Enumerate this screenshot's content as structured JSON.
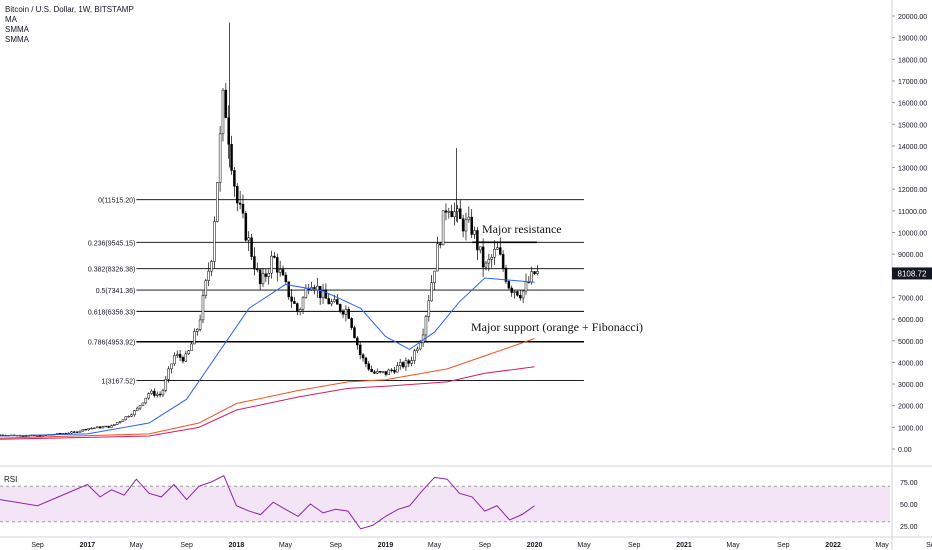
{
  "header": {
    "symbol_line": "Bitcoin / U.S. Dollar, 1W, BITSTAMP",
    "indicators": [
      "MA",
      "SMMA",
      "SMMA"
    ]
  },
  "rsi_label": "RSI",
  "last_price": "8108.72",
  "annotations": {
    "resistance": "Major resistance",
    "support": "Major support (orange + Fibonacci)"
  },
  "colors": {
    "up": "#000000",
    "down": "#000000",
    "ma": "#2962ff",
    "smma1": "#f4511e",
    "smma2": "#d81b60",
    "rsi": "#8e24aa",
    "rsi_band": "#f3e5f5",
    "fib": "#000000",
    "price_tag": "#131722"
  },
  "chart_data": [
    {
      "type": "candlestick",
      "interval": "1W",
      "y_axis": {
        "range": [
          -500,
          20500
        ],
        "ticks": [
          0,
          1000,
          2000,
          3000,
          4000,
          5000,
          6000,
          7000,
          8000,
          9000,
          10000,
          11000,
          12000,
          13000,
          14000,
          15000,
          16000,
          17000,
          18000,
          19000,
          20000
        ],
        "tick_labels": [
          "0.00",
          "1000.00",
          "2000.00",
          "3000.00",
          "4000.00",
          "5000.00",
          "6000.00",
          "7000.00",
          "8000.00",
          "9000.00",
          "10000.00",
          "11000.00",
          "12000.00",
          "13000.00",
          "14000.00",
          "15000.00",
          "16000.00",
          "17000.00",
          "18000.00",
          "19000.00",
          "20000.00"
        ]
      },
      "x_axis": {
        "labels": [
          {
            "t": "2016-09",
            "label": "Sep"
          },
          {
            "t": "2017-01",
            "label": "2017"
          },
          {
            "t": "2017-05",
            "label": "May"
          },
          {
            "t": "2017-09",
            "label": "Sep"
          },
          {
            "t": "2018-01",
            "label": "2018"
          },
          {
            "t": "2018-05",
            "label": "May"
          },
          {
            "t": "2018-09",
            "label": "Sep"
          },
          {
            "t": "2019-01",
            "label": "2019"
          },
          {
            "t": "2019-05",
            "label": "May"
          },
          {
            "t": "2019-09",
            "label": "Sep"
          },
          {
            "t": "2020-01",
            "label": "2020"
          },
          {
            "t": "2020-05",
            "label": "May"
          },
          {
            "t": "2020-09",
            "label": "Sep"
          },
          {
            "t": "2021-01",
            "label": "2021"
          },
          {
            "t": "2021-05",
            "label": "May"
          },
          {
            "t": "2021-09",
            "label": "Sep"
          },
          {
            "t": "2022-01",
            "label": "2022"
          },
          {
            "t": "2022-05",
            "label": "May"
          },
          {
            "t": "2022-09",
            "label": "Sep"
          }
        ]
      },
      "price_path": [
        [
          "2016-06",
          650
        ],
        [
          "2016-09",
          610
        ],
        [
          "2016-12",
          780
        ],
        [
          "2017-01",
          950
        ],
        [
          "2017-03",
          1050
        ],
        [
          "2017-05",
          1800
        ],
        [
          "2017-06",
          2600
        ],
        [
          "2017-07",
          2500
        ],
        [
          "2017-08",
          4300
        ],
        [
          "2017-09",
          4200
        ],
        [
          "2017-10",
          5800
        ],
        [
          "2017-11",
          9000
        ],
        [
          "2017-12",
          16500
        ],
        [
          "2018-01",
          11500
        ],
        [
          "2018-02",
          9500
        ],
        [
          "2018-03",
          7500
        ],
        [
          "2018-04",
          8900
        ],
        [
          "2018-05",
          7500
        ],
        [
          "2018-06",
          6300
        ],
        [
          "2018-07",
          7900
        ],
        [
          "2018-08",
          7000
        ],
        [
          "2018-09",
          6600
        ],
        [
          "2018-10",
          6400
        ],
        [
          "2018-11",
          4300
        ],
        [
          "2018-12",
          3500
        ],
        [
          "2019-01",
          3500
        ],
        [
          "2019-02",
          3800
        ],
        [
          "2019-03",
          4000
        ],
        [
          "2019-04",
          5300
        ],
        [
          "2019-05",
          8500
        ],
        [
          "2019-06",
          11500
        ],
        [
          "2019-07",
          10500
        ],
        [
          "2019-08",
          10200
        ],
        [
          "2019-09",
          8300
        ],
        [
          "2019-10",
          9200
        ],
        [
          "2019-11",
          7500
        ],
        [
          "2019-12",
          7200
        ],
        [
          "2020-01",
          8108.72
        ]
      ],
      "series": [
        {
          "name": "MA",
          "path": [
            [
              "2016-06",
              600
            ],
            [
              "2017-01",
              700
            ],
            [
              "2017-06",
              1200
            ],
            [
              "2017-09",
              2300
            ],
            [
              "2017-12",
              4800
            ],
            [
              "2018-02",
              6500
            ],
            [
              "2018-05",
              7600
            ],
            [
              "2018-08",
              7300
            ],
            [
              "2018-11",
              6500
            ],
            [
              "2019-01",
              5200
            ],
            [
              "2019-03",
              4600
            ],
            [
              "2019-05",
              5400
            ],
            [
              "2019-07",
              6800
            ],
            [
              "2019-09",
              7900
            ],
            [
              "2019-11",
              7800
            ],
            [
              "2020-01",
              7700
            ]
          ]
        },
        {
          "name": "SMMA",
          "path": [
            [
              "2016-06",
              500
            ],
            [
              "2017-06",
              700
            ],
            [
              "2017-10",
              1200
            ],
            [
              "2018-01",
              2100
            ],
            [
              "2018-06",
              2700
            ],
            [
              "2018-10",
              3100
            ],
            [
              "2019-01",
              3200
            ],
            [
              "2019-06",
              3700
            ],
            [
              "2019-09",
              4300
            ],
            [
              "2020-01",
              5100
            ]
          ]
        },
        {
          "name": "SMMA",
          "path": [
            [
              "2016-06",
              450
            ],
            [
              "2017-06",
              600
            ],
            [
              "2017-10",
              1000
            ],
            [
              "2018-01",
              1800
            ],
            [
              "2018-06",
              2400
            ],
            [
              "2018-10",
              2800
            ],
            [
              "2019-01",
              2900
            ],
            [
              "2019-06",
              3100
            ],
            [
              "2019-09",
              3500
            ],
            [
              "2020-01",
              3800
            ]
          ]
        }
      ],
      "fibonacci": [
        {
          "level": "0",
          "price": 11515.2,
          "label": "0(11515.20)"
        },
        {
          "level": "0.236",
          "price": 9545.15,
          "label": "0.236(9545.15)"
        },
        {
          "level": "0.382",
          "price": 8326.38,
          "label": "0.382(8326.38)"
        },
        {
          "level": "0.5",
          "price": 7341.36,
          "label": "0.5(7341.36)"
        },
        {
          "level": "0.618",
          "price": 6356.33,
          "label": "0.618(6356.33)"
        },
        {
          "level": "0.786",
          "price": 4953.92,
          "label": "0.786(4953.92)"
        },
        {
          "level": "1",
          "price": 3167.52,
          "label": "1(3167.52)"
        }
      ],
      "last_price": 8108.72
    },
    {
      "type": "line",
      "name": "RSI",
      "y_axis": {
        "ticks": [
          25,
          50,
          75
        ],
        "tick_labels": [
          "25.00",
          "50.00",
          "75.00"
        ],
        "band": [
          30,
          70
        ]
      },
      "path": [
        [
          "2016-06",
          55
        ],
        [
          "2016-09",
          48
        ],
        [
          "2016-11",
          60
        ],
        [
          "2017-01",
          72
        ],
        [
          "2017-02",
          58
        ],
        [
          "2017-03",
          66
        ],
        [
          "2017-04",
          60
        ],
        [
          "2017-05",
          78
        ],
        [
          "2017-06",
          62
        ],
        [
          "2017-07",
          58
        ],
        [
          "2017-08",
          72
        ],
        [
          "2017-09",
          55
        ],
        [
          "2017-10",
          70
        ],
        [
          "2017-11",
          75
        ],
        [
          "2017-12",
          82
        ],
        [
          "2018-01",
          48
        ],
        [
          "2018-02",
          42
        ],
        [
          "2018-03",
          38
        ],
        [
          "2018-04",
          52
        ],
        [
          "2018-05",
          44
        ],
        [
          "2018-06",
          36
        ],
        [
          "2018-07",
          50
        ],
        [
          "2018-08",
          40
        ],
        [
          "2018-09",
          44
        ],
        [
          "2018-10",
          42
        ],
        [
          "2018-11",
          22
        ],
        [
          "2018-12",
          26
        ],
        [
          "2019-01",
          36
        ],
        [
          "2019-02",
          44
        ],
        [
          "2019-03",
          48
        ],
        [
          "2019-04",
          65
        ],
        [
          "2019-05",
          80
        ],
        [
          "2019-06",
          78
        ],
        [
          "2019-07",
          62
        ],
        [
          "2019-08",
          58
        ],
        [
          "2019-09",
          42
        ],
        [
          "2019-10",
          48
        ],
        [
          "2019-11",
          32
        ],
        [
          "2019-12",
          38
        ],
        [
          "2020-01",
          48
        ]
      ]
    }
  ]
}
